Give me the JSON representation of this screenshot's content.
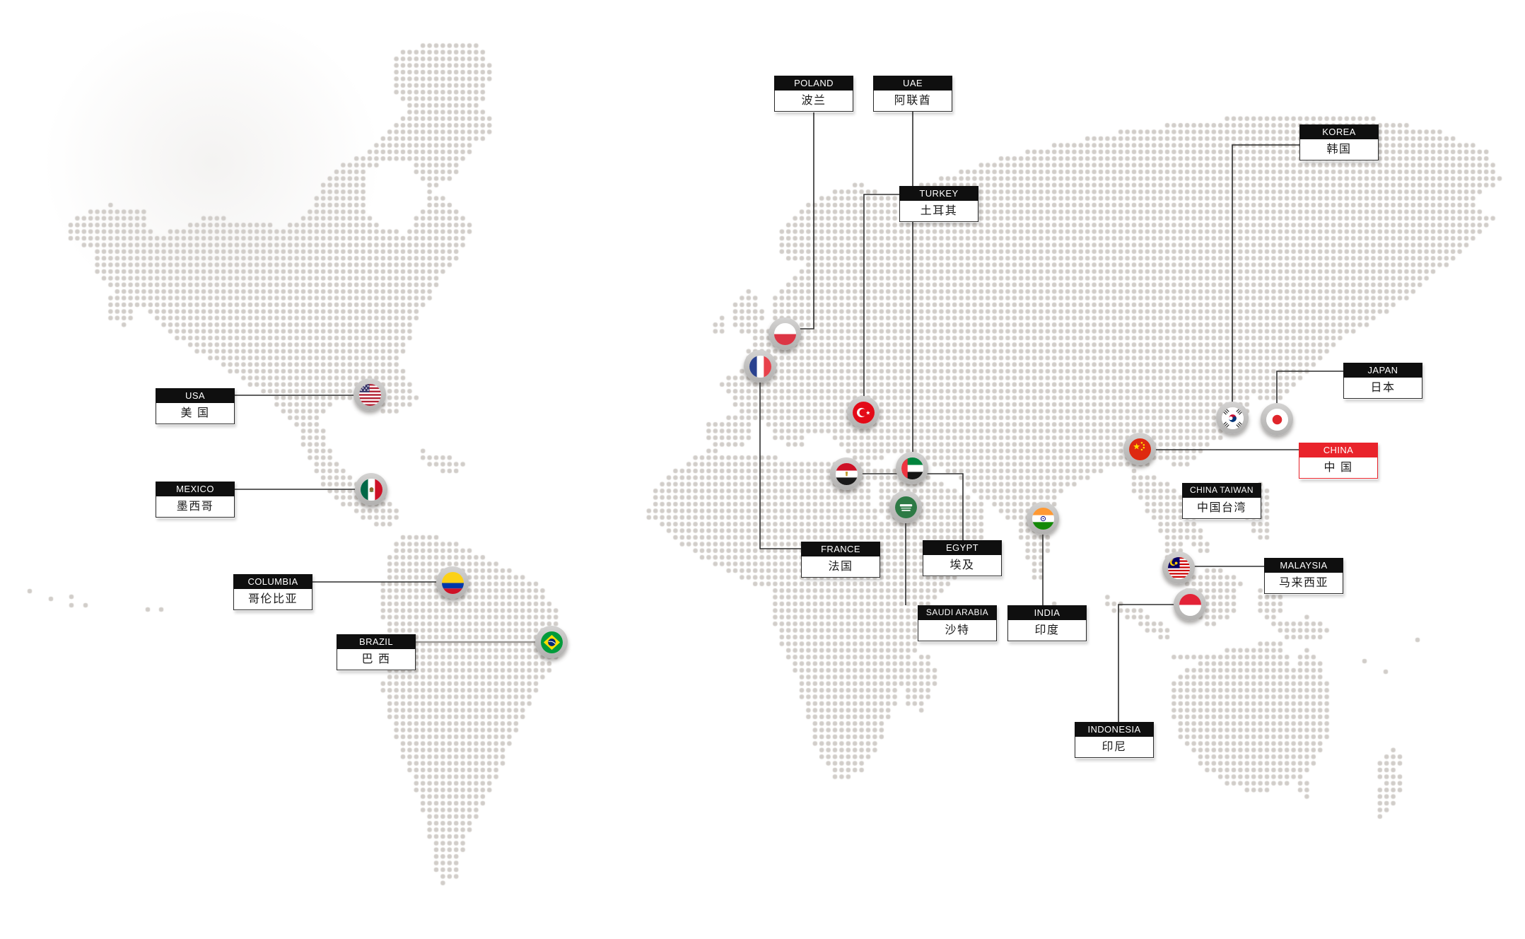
{
  "colors": {
    "accent_red": "#e9232b",
    "label_header_bg": "#0f0f0f",
    "dot_gray": "#d1cdc9",
    "connector_dark": "#2e2e2e",
    "connector_gray": "#9d9a97"
  },
  "countries": {
    "usa": {
      "en": "USA",
      "zh": "美 国"
    },
    "mexico": {
      "en": "MEXICO",
      "zh": "墨西哥"
    },
    "columbia": {
      "en": "COLUMBIA",
      "zh": "哥伦比亚"
    },
    "brazil": {
      "en": "BRAZIL",
      "zh": "巴 西"
    },
    "poland": {
      "en": "POLAND",
      "zh": "波兰"
    },
    "uae": {
      "en": "UAE",
      "zh": "阿联酋"
    },
    "turkey": {
      "en": "TURKEY",
      "zh": "土耳其"
    },
    "france": {
      "en": "FRANCE",
      "zh": "法国"
    },
    "egypt": {
      "en": "EGYPT",
      "zh": "埃及"
    },
    "saudi_arabia": {
      "en": "SAUDI ARABIA",
      "zh": "沙特"
    },
    "india": {
      "en": "INDIA",
      "zh": "印度"
    },
    "china": {
      "en": "CHINA",
      "zh": "中 国",
      "highlighted": true
    },
    "china_taiwan": {
      "en": "CHINA TAIWAN",
      "zh": "中国台湾"
    },
    "korea": {
      "en": "KOREA",
      "zh": "韩国"
    },
    "japan": {
      "en": "JAPAN",
      "zh": "日本"
    },
    "malaysia": {
      "en": "MALAYSIA",
      "zh": "马来西亚"
    },
    "indonesia": {
      "en": "INDONESIA",
      "zh": "印尼"
    }
  }
}
